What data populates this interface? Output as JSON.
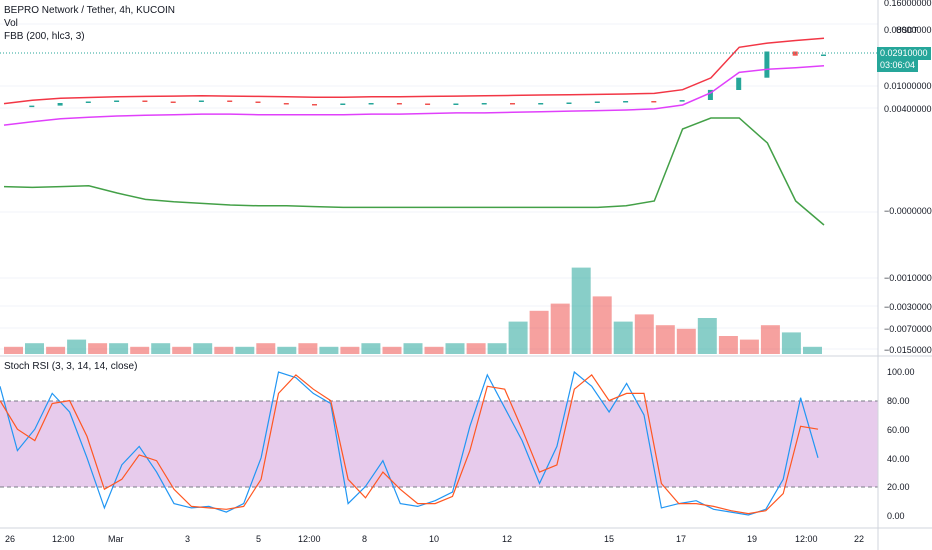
{
  "legend": {
    "symbol": "BEPRO Network / Tether, 4h, KUCOIN",
    "volume": "Vol",
    "indicator": "FBB (200, hlc3, 3)",
    "oscillator": "Stoch RSI (3, 3, 14, 14, close)"
  },
  "price_axis": {
    "unit": "USDT",
    "ticks": [
      "0.16000000",
      "0.08000000",
      "0.01000000",
      "0.00400000",
      "−0.00000000",
      "−0.00100000",
      "−0.00300000",
      "−0.00700000",
      "−0.01500000"
    ],
    "current_price": "0.02910000",
    "countdown": "03:06:04"
  },
  "stoch_axis": {
    "ticks": [
      "100.00",
      "80.00",
      "60.00",
      "40.00",
      "20.00",
      "0.00"
    ]
  },
  "time_axis": {
    "ticks": [
      "26",
      "12:00",
      "Mar",
      "3",
      "5",
      "12:00",
      "8",
      "10",
      "12",
      "15",
      "17",
      "19",
      "12:00",
      "22"
    ]
  },
  "colors": {
    "up": "#26a69a",
    "down": "#ef5350",
    "upper_band": "#f23645",
    "lower_band": "#e040fb",
    "middle_line": "#43a047",
    "k_line": "#2196f3",
    "d_line": "#ff5722",
    "stoch_band": "#e1bee7",
    "price_line": "#26a69a"
  },
  "chart_data": [
    {
      "type": "line",
      "name": "price_panel",
      "x": [
        0,
        6,
        12,
        18,
        24,
        30,
        36,
        42,
        48,
        54,
        60,
        66,
        72,
        78,
        84,
        90,
        96,
        102,
        108,
        114,
        120,
        126,
        132,
        138,
        144,
        150,
        156,
        162,
        168,
        174
      ],
      "close": [
        0.0056,
        0.0058,
        0.0063,
        0.0066,
        0.0068,
        0.0066,
        0.0065,
        0.0068,
        0.0066,
        0.0063,
        0.0061,
        0.006,
        0.0062,
        0.0063,
        0.0062,
        0.0061,
        0.0062,
        0.0063,
        0.0062,
        0.0063,
        0.0064,
        0.0066,
        0.0067,
        0.0066,
        0.0069,
        0.0095,
        0.014,
        0.032,
        0.028,
        0.0291
      ],
      "upper_band": [
        0.0071,
        0.0079,
        0.0084,
        0.0086,
        0.0088,
        0.0089,
        0.009,
        0.0091,
        0.009,
        0.0089,
        0.0088,
        0.0087,
        0.0087,
        0.0088,
        0.0088,
        0.0089,
        0.009,
        0.0091,
        0.0092,
        0.0093,
        0.0094,
        0.0095,
        0.0096,
        0.0098,
        0.011,
        0.016,
        0.042,
        0.048,
        0.052,
        0.056
      ],
      "lower_band": [
        0.0036,
        0.004,
        0.0044,
        0.0046,
        0.0048,
        0.0049,
        0.005,
        0.0051,
        0.0051,
        0.005,
        0.005,
        0.005,
        0.005,
        0.0051,
        0.0051,
        0.0052,
        0.0053,
        0.0053,
        0.0054,
        0.0055,
        0.0056,
        0.0057,
        0.0058,
        0.006,
        0.0068,
        0.01,
        0.019,
        0.021,
        0.022,
        0.0235
      ],
      "middle_line": [
        -0.0002,
        -0.0003,
        -0.0002,
        -0.0001,
        -0.001,
        -0.0018,
        -0.0021,
        -0.0023,
        -0.0025,
        -0.0026,
        -0.0026,
        -0.0027,
        -0.0028,
        -0.0028,
        -0.0028,
        -0.0028,
        -0.0028,
        -0.0028,
        -0.0028,
        -0.0028,
        -0.0028,
        -0.0028,
        -0.0026,
        -0.002,
        0.004,
        0.0048,
        0.005,
        0.003,
        -0.002,
        -0.005
      ]
    },
    {
      "type": "bar",
      "name": "volume",
      "values": [
        2,
        3,
        2,
        4,
        3,
        3,
        2,
        3,
        2,
        3,
        2,
        2,
        3,
        2,
        3,
        2,
        2,
        3,
        2,
        3,
        2,
        3,
        3,
        3,
        9,
        12,
        14,
        24,
        16,
        9,
        11,
        8,
        7,
        10,
        5,
        4,
        8,
        6,
        2
      ],
      "directions": [
        "d",
        "u",
        "d",
        "u",
        "d",
        "u",
        "d",
        "u",
        "d",
        "u",
        "d",
        "u",
        "d",
        "u",
        "d",
        "u",
        "d",
        "u",
        "d",
        "u",
        "d",
        "u",
        "d",
        "u",
        "u",
        "d",
        "d",
        "u",
        "d",
        "u",
        "d",
        "d",
        "d",
        "u",
        "d",
        "d",
        "d",
        "u",
        "u"
      ]
    },
    {
      "type": "line",
      "name": "stoch_rsi",
      "ylim": [
        0,
        100
      ],
      "bands": [
        20,
        80
      ],
      "k": [
        90,
        45,
        60,
        85,
        72,
        40,
        5,
        35,
        48,
        30,
        8,
        5,
        6,
        2,
        8,
        40,
        100,
        96,
        85,
        78,
        8,
        20,
        38,
        8,
        6,
        10,
        16,
        62,
        98,
        75,
        52,
        22,
        48,
        100,
        90,
        72,
        92,
        70,
        5,
        8,
        10,
        4,
        2,
        0,
        4,
        25,
        82,
        40
      ],
      "d": [
        80,
        60,
        52,
        78,
        80,
        55,
        18,
        25,
        42,
        38,
        18,
        6,
        5,
        4,
        6,
        25,
        85,
        98,
        88,
        80,
        25,
        12,
        30,
        18,
        8,
        8,
        13,
        45,
        90,
        88,
        60,
        30,
        35,
        88,
        98,
        80,
        85,
        85,
        22,
        8,
        8,
        6,
        3,
        1,
        3,
        15,
        62,
        60
      ]
    }
  ]
}
